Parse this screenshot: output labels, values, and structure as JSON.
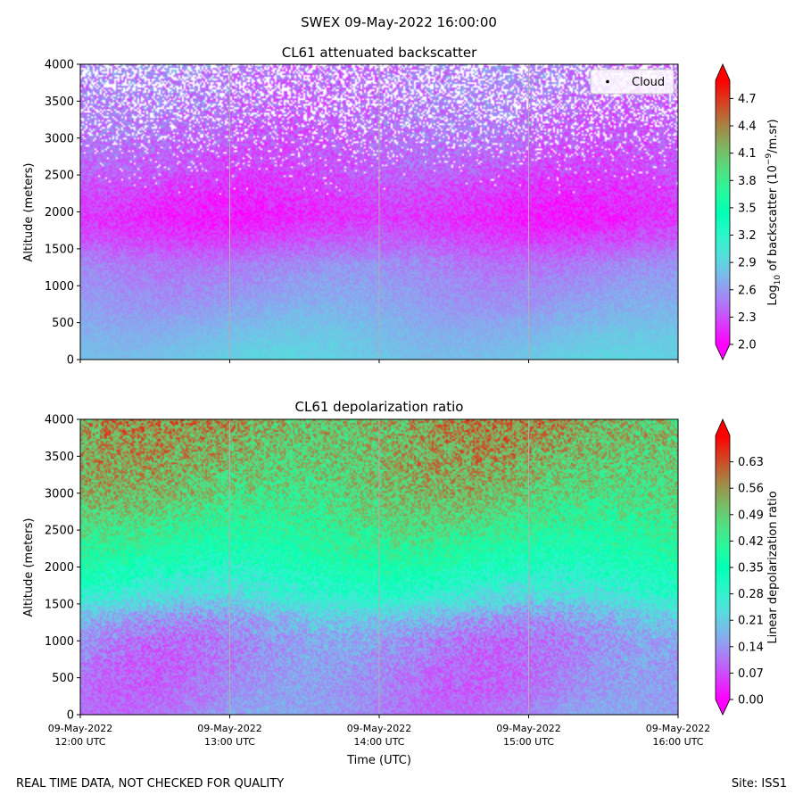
{
  "suptitle": "SWEX 09-May-2022 16:00:00",
  "footer_left": "REAL TIME DATA, NOT CHECKED FOR QUALITY",
  "footer_right": "Site: ISS1",
  "chart_data": [
    {
      "type": "heatmap",
      "title": "CL61 attenuated backscatter",
      "ylabel": "Altitude (meters)",
      "ylim": [
        0,
        4000
      ],
      "yticks": [
        0,
        500,
        1000,
        1500,
        2000,
        2500,
        3000,
        3500,
        4000
      ],
      "xlim": [
        "09-May-2022 12:00 UTC",
        "09-May-2022 16:00 UTC"
      ],
      "x_ticks_labeled": false,
      "legend": {
        "entries": [
          "Cloud"
        ],
        "marker": "black dot",
        "placement": "upper right"
      },
      "colorbar": {
        "label_parts": {
          "pre": "Log",
          "sub": "10",
          "mid": " of backscatter (10",
          "sup": "−9",
          "post": "/m.sr)"
        },
        "colormap": "rainbow",
        "vmin": 2.0,
        "vmax": 4.9,
        "ticks": [
          2.0,
          2.3,
          2.6,
          2.9,
          3.2,
          3.5,
          3.8,
          4.1,
          4.4,
          4.7
        ],
        "tick_labels": [
          "2.0",
          "2.3",
          "2.6",
          "2.9",
          "3.2",
          "3.5",
          "3.8",
          "4.1",
          "4.4",
          "4.7"
        ],
        "extend": "both"
      },
      "profile": {
        "altitude_m": [
          0,
          200,
          400,
          700,
          1000,
          1300,
          1600,
          1900,
          2200,
          2600,
          3000,
          3500,
          4000
        ],
        "value": [
          2.85,
          2.8,
          2.75,
          2.65,
          2.58,
          2.5,
          2.3,
          2.15,
          2.2,
          2.32,
          2.38,
          2.42,
          2.45
        ],
        "noise_fraction_missing": [
          0,
          0,
          0,
          0,
          0,
          0,
          0,
          0,
          0,
          0.03,
          0.15,
          0.32,
          0.42
        ]
      }
    },
    {
      "type": "heatmap",
      "title": "CL61 depolarization ratio",
      "ylabel": "Altitude (meters)",
      "xlabel": "Time (UTC)",
      "ylim": [
        0,
        4000
      ],
      "yticks": [
        0,
        500,
        1000,
        1500,
        2000,
        2500,
        3000,
        3500,
        4000
      ],
      "xticks": [
        {
          "date": "09-May-2022",
          "time": "12:00 UTC"
        },
        {
          "date": "09-May-2022",
          "time": "13:00 UTC"
        },
        {
          "date": "09-May-2022",
          "time": "14:00 UTC"
        },
        {
          "date": "09-May-2022",
          "time": "15:00 UTC"
        },
        {
          "date": "09-May-2022",
          "time": "16:00 UTC"
        }
      ],
      "colorbar": {
        "label": "Linear depolarization ratio",
        "colormap": "rainbow",
        "vmin": 0.0,
        "vmax": 0.7,
        "ticks": [
          0.0,
          0.07,
          0.14,
          0.21,
          0.28,
          0.35,
          0.42,
          0.49,
          0.56,
          0.63
        ],
        "tick_labels": [
          "0.00",
          "0.07",
          "0.14",
          "0.21",
          "0.28",
          "0.35",
          "0.42",
          "0.49",
          "0.56",
          "0.63"
        ],
        "extend": "both"
      },
      "profile": {
        "altitude_m": [
          0,
          300,
          600,
          1000,
          1300,
          1600,
          1900,
          2200,
          2600,
          3000,
          3500,
          4000
        ],
        "value": [
          0.13,
          0.12,
          0.12,
          0.13,
          0.17,
          0.26,
          0.32,
          0.38,
          0.44,
          0.49,
          0.52,
          0.54
        ],
        "noise_fraction_missing": [
          0,
          0,
          0,
          0,
          0,
          0,
          0,
          0,
          0,
          0,
          0,
          0
        ]
      }
    }
  ]
}
